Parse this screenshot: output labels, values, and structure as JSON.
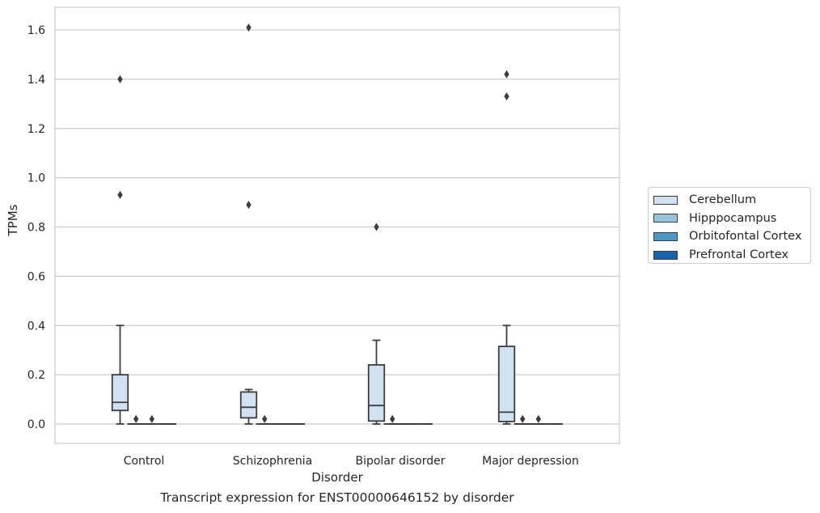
{
  "chart_data": {
    "type": "box",
    "title": "",
    "caption": "Transcript expression for ENST00000646152 by disorder",
    "xlabel": "Disorder",
    "ylabel": "TPMs",
    "ylim": [
      -0.08,
      1.69
    ],
    "yticks": [
      "0.0",
      "0.2",
      "0.4",
      "0.6",
      "0.8",
      "1.0",
      "1.2",
      "1.4",
      "1.6"
    ],
    "grid": "horizontal",
    "legend_position": "right, outside plot",
    "categories": [
      "Control",
      "Schizophrenia",
      "Bipolar disorder",
      "Major depression"
    ],
    "series": [
      {
        "name": "Cerebellum",
        "color": "#d0e1f2",
        "boxes": [
          {
            "whisker_low": 0.0,
            "q1": 0.055,
            "median": 0.088,
            "q3": 0.2,
            "whisker_high": 0.4,
            "outliers": [
              0.93,
              1.4
            ]
          },
          {
            "whisker_low": 0.0,
            "q1": 0.025,
            "median": 0.068,
            "q3": 0.13,
            "whisker_high": 0.14,
            "outliers": [
              0.89,
              1.61
            ]
          },
          {
            "whisker_low": 0.0,
            "q1": 0.012,
            "median": 0.075,
            "q3": 0.24,
            "whisker_high": 0.34,
            "outliers": [
              0.8
            ]
          },
          {
            "whisker_low": 0.0,
            "q1": 0.01,
            "median": 0.048,
            "q3": 0.315,
            "whisker_high": 0.4,
            "outliers": [
              1.33,
              1.42
            ]
          }
        ]
      },
      {
        "name": "Hipppocampus",
        "color": "#94c4df",
        "boxes": [
          {
            "whisker_low": 0.0,
            "q1": 0.0,
            "median": 0.0,
            "q3": 0.0,
            "whisker_high": 0.0,
            "outliers": [
              0.02
            ]
          },
          {
            "whisker_low": 0.0,
            "q1": 0.0,
            "median": 0.0,
            "q3": 0.0,
            "whisker_high": 0.0,
            "outliers": [
              0.02
            ]
          },
          {
            "whisker_low": 0.0,
            "q1": 0.0,
            "median": 0.0,
            "q3": 0.0,
            "whisker_high": 0.0,
            "outliers": [
              0.02
            ]
          },
          {
            "whisker_low": 0.0,
            "q1": 0.0,
            "median": 0.0,
            "q3": 0.0,
            "whisker_high": 0.0,
            "outliers": [
              0.02
            ]
          }
        ]
      },
      {
        "name": "Orbitofontal Cortex",
        "color": "#4a98c9",
        "boxes": [
          {
            "whisker_low": 0.0,
            "q1": 0.0,
            "median": 0.0,
            "q3": 0.0,
            "whisker_high": 0.0,
            "outliers": [
              0.02
            ]
          },
          {
            "whisker_low": 0.0,
            "q1": 0.0,
            "median": 0.0,
            "q3": 0.0,
            "whisker_high": 0.0,
            "outliers": []
          },
          {
            "whisker_low": 0.0,
            "q1": 0.0,
            "median": 0.0,
            "q3": 0.0,
            "whisker_high": 0.0,
            "outliers": []
          },
          {
            "whisker_low": 0.0,
            "q1": 0.0,
            "median": 0.0,
            "q3": 0.0,
            "whisker_high": 0.0,
            "outliers": [
              0.02
            ]
          }
        ]
      },
      {
        "name": "Prefrontal Cortex",
        "color": "#1764ab",
        "boxes": [
          {
            "whisker_low": 0.0,
            "q1": 0.0,
            "median": 0.0,
            "q3": 0.0,
            "whisker_high": 0.0,
            "outliers": []
          },
          {
            "whisker_low": 0.0,
            "q1": 0.0,
            "median": 0.0,
            "q3": 0.0,
            "whisker_high": 0.0,
            "outliers": []
          },
          {
            "whisker_low": 0.0,
            "q1": 0.0,
            "median": 0.0,
            "q3": 0.0,
            "whisker_high": 0.0,
            "outliers": []
          },
          {
            "whisker_low": 0.0,
            "q1": 0.0,
            "median": 0.0,
            "q3": 0.0,
            "whisker_high": 0.0,
            "outliers": []
          }
        ]
      }
    ]
  }
}
